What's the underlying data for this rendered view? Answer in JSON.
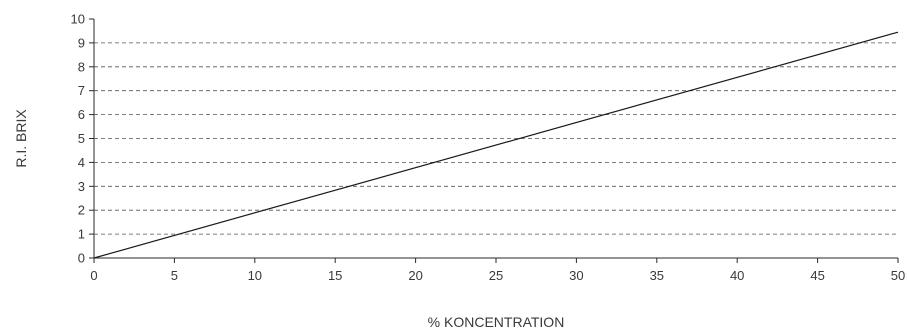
{
  "chart_data": {
    "type": "line",
    "xlabel": "% KONCENTRATION",
    "ylabel": "R.I. BRIX",
    "xlim": [
      0,
      50
    ],
    "ylim": [
      0,
      10
    ],
    "x_ticks": [
      0,
      5,
      10,
      15,
      20,
      25,
      30,
      35,
      40,
      45,
      50
    ],
    "y_ticks": [
      0,
      1,
      2,
      3,
      4,
      5,
      6,
      7,
      8,
      9,
      10
    ],
    "grid": "horizontal dashed",
    "series": [
      {
        "x": [
          0,
          50
        ],
        "y": [
          0,
          9.45
        ]
      }
    ],
    "colors": {
      "line": "#1a1a1a",
      "axis": "#2a2a2a",
      "grid": "#555555",
      "text": "#3a3a3a"
    }
  }
}
